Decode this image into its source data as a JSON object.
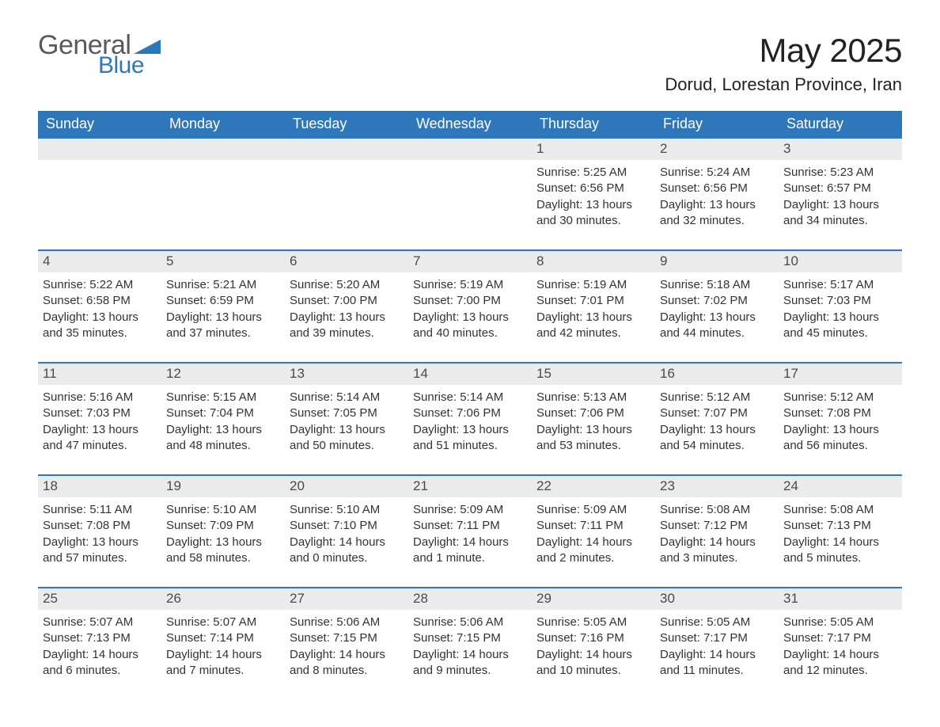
{
  "logo": {
    "word1": "General",
    "word2": "Blue",
    "tri_color": "#2f77bb"
  },
  "title": "May 2025",
  "location": "Dorud, Lorestan Province, Iran",
  "colors": {
    "header_bg": "#2f77bb",
    "header_text": "#ffffff",
    "daynum_bg": "#ebebeb",
    "daynum_text": "#4a4a4a",
    "body_text": "#333333",
    "rule": "#2f77bb",
    "page_bg": "#ffffff"
  },
  "typography": {
    "title_fontsize_pt": 32,
    "location_fontsize_pt": 17,
    "dow_fontsize_pt": 14,
    "daynum_fontsize_pt": 13,
    "info_fontsize_pt": 11
  },
  "days_of_week": [
    "Sunday",
    "Monday",
    "Tuesday",
    "Wednesday",
    "Thursday",
    "Friday",
    "Saturday"
  ],
  "labels": {
    "sunrise": "Sunrise:",
    "sunset": "Sunset:",
    "daylight": "Daylight:"
  },
  "weeks": [
    [
      null,
      null,
      null,
      null,
      {
        "n": "1",
        "sunrise": "5:25 AM",
        "sunset": "6:56 PM",
        "daylight": "13 hours and 30 minutes."
      },
      {
        "n": "2",
        "sunrise": "5:24 AM",
        "sunset": "6:56 PM",
        "daylight": "13 hours and 32 minutes."
      },
      {
        "n": "3",
        "sunrise": "5:23 AM",
        "sunset": "6:57 PM",
        "daylight": "13 hours and 34 minutes."
      }
    ],
    [
      {
        "n": "4",
        "sunrise": "5:22 AM",
        "sunset": "6:58 PM",
        "daylight": "13 hours and 35 minutes."
      },
      {
        "n": "5",
        "sunrise": "5:21 AM",
        "sunset": "6:59 PM",
        "daylight": "13 hours and 37 minutes."
      },
      {
        "n": "6",
        "sunrise": "5:20 AM",
        "sunset": "7:00 PM",
        "daylight": "13 hours and 39 minutes."
      },
      {
        "n": "7",
        "sunrise": "5:19 AM",
        "sunset": "7:00 PM",
        "daylight": "13 hours and 40 minutes."
      },
      {
        "n": "8",
        "sunrise": "5:19 AM",
        "sunset": "7:01 PM",
        "daylight": "13 hours and 42 minutes."
      },
      {
        "n": "9",
        "sunrise": "5:18 AM",
        "sunset": "7:02 PM",
        "daylight": "13 hours and 44 minutes."
      },
      {
        "n": "10",
        "sunrise": "5:17 AM",
        "sunset": "7:03 PM",
        "daylight": "13 hours and 45 minutes."
      }
    ],
    [
      {
        "n": "11",
        "sunrise": "5:16 AM",
        "sunset": "7:03 PM",
        "daylight": "13 hours and 47 minutes."
      },
      {
        "n": "12",
        "sunrise": "5:15 AM",
        "sunset": "7:04 PM",
        "daylight": "13 hours and 48 minutes."
      },
      {
        "n": "13",
        "sunrise": "5:14 AM",
        "sunset": "7:05 PM",
        "daylight": "13 hours and 50 minutes."
      },
      {
        "n": "14",
        "sunrise": "5:14 AM",
        "sunset": "7:06 PM",
        "daylight": "13 hours and 51 minutes."
      },
      {
        "n": "15",
        "sunrise": "5:13 AM",
        "sunset": "7:06 PM",
        "daylight": "13 hours and 53 minutes."
      },
      {
        "n": "16",
        "sunrise": "5:12 AM",
        "sunset": "7:07 PM",
        "daylight": "13 hours and 54 minutes."
      },
      {
        "n": "17",
        "sunrise": "5:12 AM",
        "sunset": "7:08 PM",
        "daylight": "13 hours and 56 minutes."
      }
    ],
    [
      {
        "n": "18",
        "sunrise": "5:11 AM",
        "sunset": "7:08 PM",
        "daylight": "13 hours and 57 minutes."
      },
      {
        "n": "19",
        "sunrise": "5:10 AM",
        "sunset": "7:09 PM",
        "daylight": "13 hours and 58 minutes."
      },
      {
        "n": "20",
        "sunrise": "5:10 AM",
        "sunset": "7:10 PM",
        "daylight": "14 hours and 0 minutes."
      },
      {
        "n": "21",
        "sunrise": "5:09 AM",
        "sunset": "7:11 PM",
        "daylight": "14 hours and 1 minute."
      },
      {
        "n": "22",
        "sunrise": "5:09 AM",
        "sunset": "7:11 PM",
        "daylight": "14 hours and 2 minutes."
      },
      {
        "n": "23",
        "sunrise": "5:08 AM",
        "sunset": "7:12 PM",
        "daylight": "14 hours and 3 minutes."
      },
      {
        "n": "24",
        "sunrise": "5:08 AM",
        "sunset": "7:13 PM",
        "daylight": "14 hours and 5 minutes."
      }
    ],
    [
      {
        "n": "25",
        "sunrise": "5:07 AM",
        "sunset": "7:13 PM",
        "daylight": "14 hours and 6 minutes."
      },
      {
        "n": "26",
        "sunrise": "5:07 AM",
        "sunset": "7:14 PM",
        "daylight": "14 hours and 7 minutes."
      },
      {
        "n": "27",
        "sunrise": "5:06 AM",
        "sunset": "7:15 PM",
        "daylight": "14 hours and 8 minutes."
      },
      {
        "n": "28",
        "sunrise": "5:06 AM",
        "sunset": "7:15 PM",
        "daylight": "14 hours and 9 minutes."
      },
      {
        "n": "29",
        "sunrise": "5:05 AM",
        "sunset": "7:16 PM",
        "daylight": "14 hours and 10 minutes."
      },
      {
        "n": "30",
        "sunrise": "5:05 AM",
        "sunset": "7:17 PM",
        "daylight": "14 hours and 11 minutes."
      },
      {
        "n": "31",
        "sunrise": "5:05 AM",
        "sunset": "7:17 PM",
        "daylight": "14 hours and 12 minutes."
      }
    ]
  ]
}
